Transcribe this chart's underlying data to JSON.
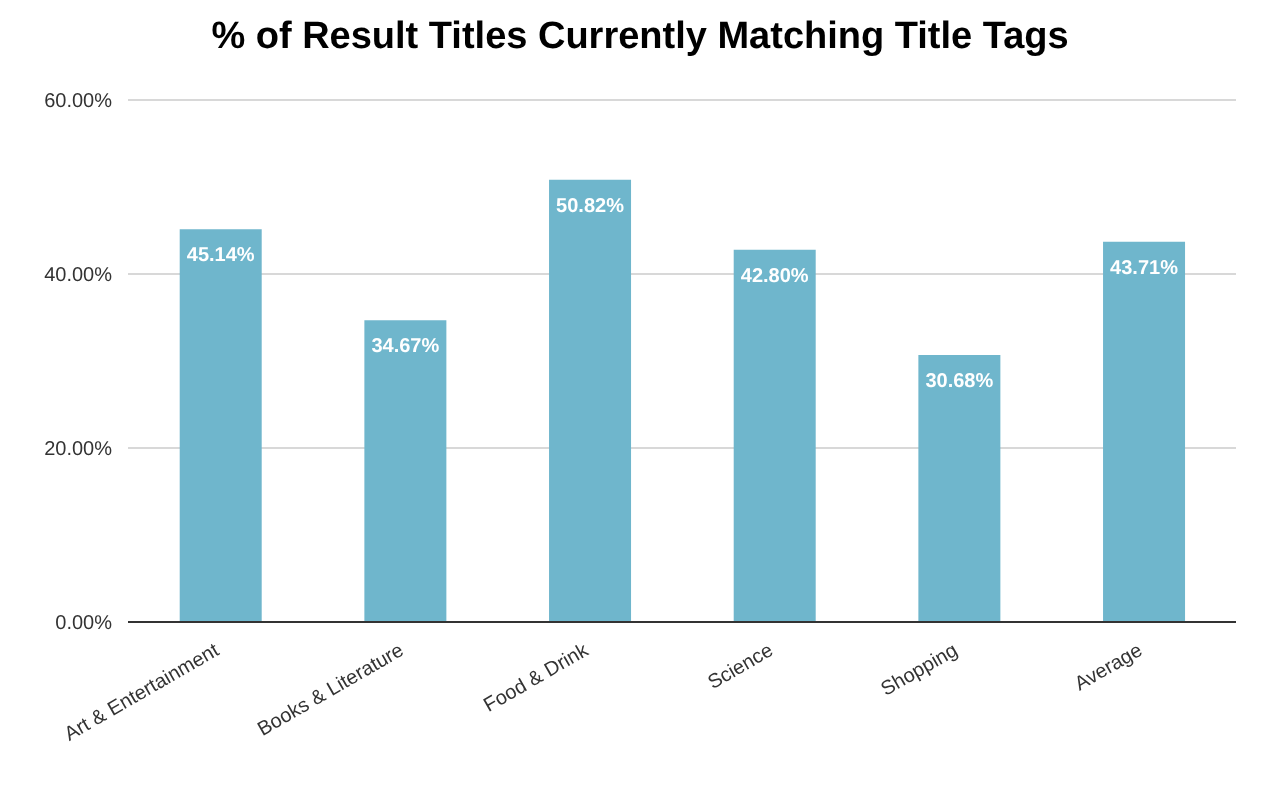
{
  "chart_data": {
    "type": "bar",
    "title": "% of Result Titles Currently Matching Title Tags",
    "categories": [
      "Art & Entertainment",
      "Books & Literature",
      "Food & Drink",
      "Science",
      "Shopping",
      "Average"
    ],
    "series": [
      {
        "color": "#6fb6cc",
        "values": [
          45.14,
          34.67,
          50.82,
          42.8,
          30.68,
          43.71
        ],
        "value_labels": [
          "45.14%",
          "34.67%",
          "50.82%",
          "42.80%",
          "30.68%",
          "43.71%"
        ]
      }
    ],
    "ylim": [
      0,
      60
    ],
    "yticks": [
      {
        "value": 0,
        "label": "0.00%"
      },
      {
        "value": 20,
        "label": "20.00%"
      },
      {
        "value": 40,
        "label": "40.00%"
      },
      {
        "value": 60,
        "label": "60.00%"
      }
    ],
    "grid": "y",
    "legend": false
  }
}
